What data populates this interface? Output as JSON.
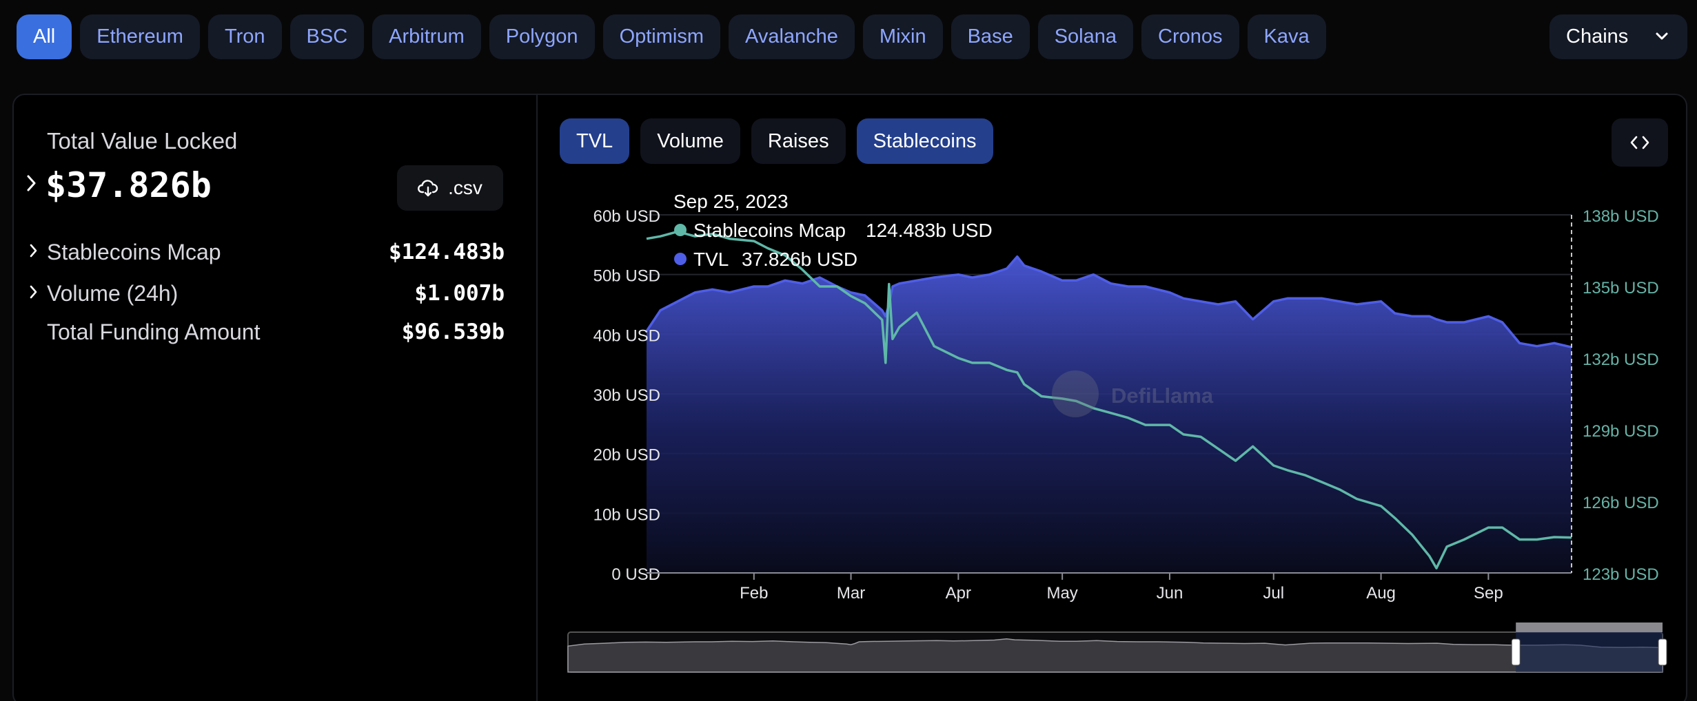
{
  "chains": {
    "items": [
      "All",
      "Ethereum",
      "Tron",
      "BSC",
      "Arbitrum",
      "Polygon",
      "Optimism",
      "Avalanche",
      "Mixin",
      "Base",
      "Solana",
      "Cronos",
      "Kava"
    ],
    "active": "All",
    "select_label": "Chains"
  },
  "summary": {
    "tvl_label": "Total Value Locked",
    "tvl_value": "$37.826b",
    "csv_label": ".csv",
    "rows": [
      {
        "label": "Stablecoins Mcap",
        "value": "$124.483b"
      },
      {
        "label": "Volume (24h)",
        "value": "$1.007b"
      },
      {
        "label": "Total Funding Amount",
        "value": "$96.539b"
      }
    ]
  },
  "tabs": {
    "items": [
      "TVL",
      "Volume",
      "Raises",
      "Stablecoins"
    ],
    "active": [
      "TVL",
      "Stablecoins"
    ]
  },
  "colors": {
    "accent": "#3a6fe0",
    "tvl": "#4f5ee6",
    "stablecoins": "#5fb8a8"
  },
  "watermark": "DefiLlama",
  "tooltip": {
    "date": "Sep 25, 2023",
    "rows": [
      {
        "label": "Stablecoins Mcap",
        "value": "124.483b USD",
        "color": "#5fb8a8"
      },
      {
        "label": "TVL",
        "value": "37.826b USD",
        "color": "#4f5ee6"
      }
    ]
  },
  "chart_data": {
    "type": "area",
    "x": [
      "2023-01-01",
      "2023-01-05",
      "2023-01-10",
      "2023-01-15",
      "2023-01-20",
      "2023-01-25",
      "2023-02-01",
      "2023-02-05",
      "2023-02-10",
      "2023-02-15",
      "2023-02-20",
      "2023-02-25",
      "2023-03-01",
      "2023-03-05",
      "2023-03-10",
      "2023-03-11",
      "2023-03-12",
      "2023-03-13",
      "2023-03-15",
      "2023-03-20",
      "2023-03-25",
      "2023-04-01",
      "2023-04-05",
      "2023-04-10",
      "2023-04-15",
      "2023-04-18",
      "2023-04-20",
      "2023-04-25",
      "2023-05-01",
      "2023-05-05",
      "2023-05-10",
      "2023-05-15",
      "2023-05-20",
      "2023-05-25",
      "2023-06-01",
      "2023-06-05",
      "2023-06-10",
      "2023-06-15",
      "2023-06-20",
      "2023-06-25",
      "2023-07-01",
      "2023-07-05",
      "2023-07-10",
      "2023-07-15",
      "2023-07-20",
      "2023-07-25",
      "2023-08-01",
      "2023-08-05",
      "2023-08-10",
      "2023-08-15",
      "2023-08-17",
      "2023-08-20",
      "2023-08-25",
      "2023-09-01",
      "2023-09-05",
      "2023-09-10",
      "2023-09-15",
      "2023-09-20",
      "2023-09-25"
    ],
    "series": [
      {
        "name": "TVL",
        "axis": "left",
        "unit": "USD",
        "values": [
          40.5,
          44.0,
          45.5,
          47.0,
          47.5,
          47.0,
          48.0,
          48.0,
          49.0,
          48.5,
          49.5,
          48.0,
          47.0,
          46.5,
          44.0,
          43.0,
          45.0,
          48.0,
          48.5,
          49.0,
          49.5,
          50.0,
          49.5,
          50.0,
          51.0,
          53.0,
          51.5,
          50.5,
          49.0,
          49.0,
          50.0,
          48.5,
          48.0,
          48.0,
          47.0,
          46.0,
          45.5,
          45.0,
          45.5,
          42.5,
          45.5,
          46.0,
          46.0,
          46.0,
          45.5,
          45.0,
          45.5,
          43.5,
          43.0,
          43.0,
          42.5,
          42.0,
          42.0,
          43.0,
          42.0,
          38.5,
          38.0,
          38.5,
          37.826
        ]
      },
      {
        "name": "Stablecoins Mcap",
        "axis": "right",
        "unit": "USD",
        "values": [
          137.0,
          137.1,
          137.3,
          137.1,
          137.2,
          137.0,
          136.9,
          136.6,
          136.3,
          135.7,
          135.0,
          135.0,
          134.6,
          134.3,
          133.6,
          131.8,
          135.1,
          132.8,
          133.3,
          133.9,
          132.5,
          132.0,
          131.8,
          131.8,
          131.5,
          131.4,
          130.9,
          130.4,
          130.3,
          130.2,
          129.9,
          129.7,
          129.5,
          129.2,
          129.2,
          128.8,
          128.7,
          128.2,
          127.7,
          128.3,
          127.5,
          127.3,
          127.1,
          126.8,
          126.5,
          126.1,
          125.8,
          125.3,
          124.6,
          123.7,
          123.2,
          124.1,
          124.4,
          124.9,
          124.9,
          124.4,
          124.4,
          124.5,
          124.483
        ]
      }
    ],
    "y_left": {
      "ticks": [
        "0 USD",
        "10b USD",
        "20b USD",
        "30b USD",
        "40b USD",
        "50b USD",
        "60b USD"
      ],
      "ylim": [
        0,
        60
      ]
    },
    "y_right": {
      "ticks": [
        "123b USD",
        "126b USD",
        "129b USD",
        "132b USD",
        "135b USD",
        "138b USD"
      ],
      "ylim": [
        123,
        138
      ]
    },
    "x_ticks": [
      {
        "label": "Feb",
        "date": "2023-02-01"
      },
      {
        "label": "Mar",
        "date": "2023-03-01"
      },
      {
        "label": "Apr",
        "date": "2023-04-01"
      },
      {
        "label": "May",
        "date": "2023-05-01"
      },
      {
        "label": "Jun",
        "date": "2023-06-01"
      },
      {
        "label": "Jul",
        "date": "2023-07-01"
      },
      {
        "label": "Aug",
        "date": "2023-08-01"
      },
      {
        "label": "Sep",
        "date": "2023-09-01"
      }
    ],
    "grid": true,
    "zoom_range": {
      "start_fraction": 0.866,
      "end_fraction": 1.0
    }
  }
}
